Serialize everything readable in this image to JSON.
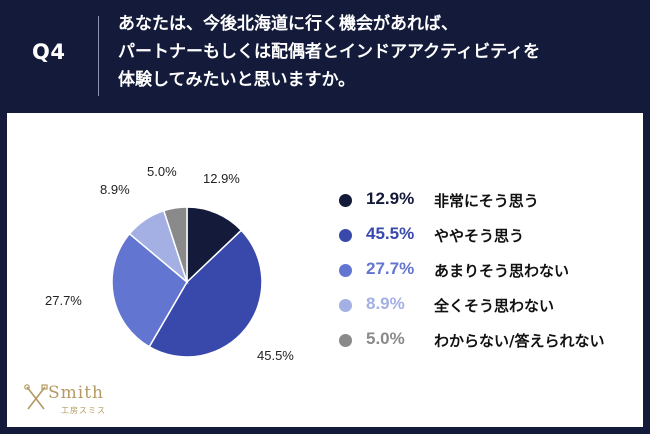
{
  "header": {
    "qnum": "Q4",
    "lines": [
      "あなたは、今後北海道に行く機会があれば、",
      "パートナーもしくは配偶者とインドアアクティビティを",
      "体験してみたいと思いますか。"
    ]
  },
  "chart_data": {
    "type": "pie",
    "title": "",
    "legend_position": "right",
    "slices": [
      {
        "label": "非常にそう思う",
        "value": 12.9,
        "text": "12.9%",
        "color": "#131a3a"
      },
      {
        "label": "ややそう思う",
        "value": 45.5,
        "text": "45.5%",
        "color": "#3949ab"
      },
      {
        "label": "あまりそう思わない",
        "value": 27.7,
        "text": "27.7%",
        "color": "#6275d1"
      },
      {
        "label": "全くそう思わない",
        "value": 8.9,
        "text": "8.9%",
        "color": "#a4b0e4"
      },
      {
        "label": "わからない/答えられない",
        "value": 5.0,
        "text": "5.0%",
        "color": "#8a8a8a"
      }
    ]
  },
  "logo": {
    "word": "Smith",
    "sub": "工房スミス"
  }
}
